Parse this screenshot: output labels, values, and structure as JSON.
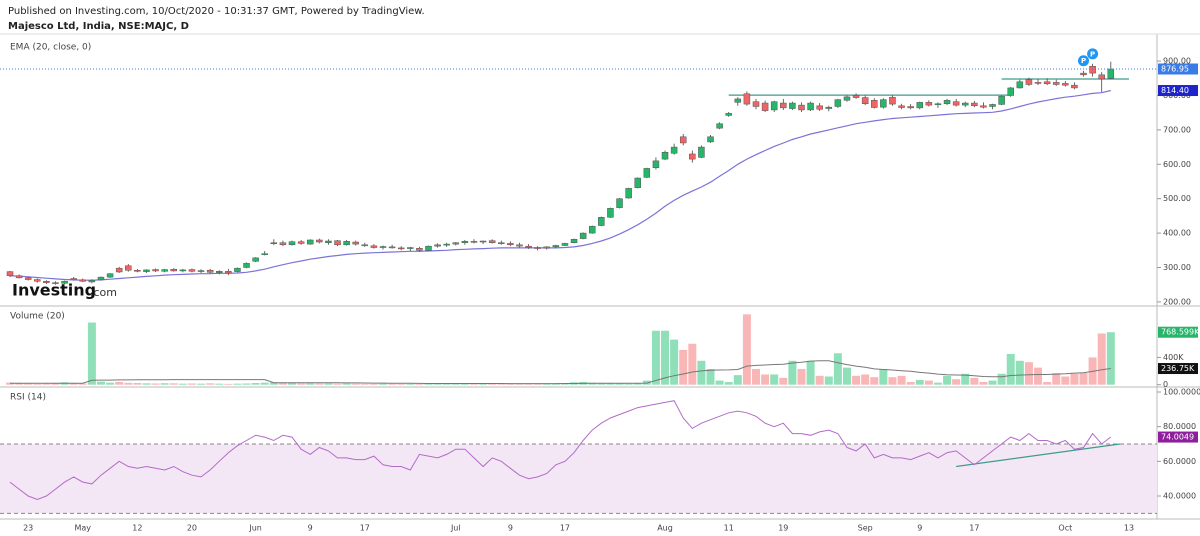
{
  "header": {
    "published": "Published on Investing.com, 10/Oct/2020 - 10:31:37 GMT, Powered by TradingView.",
    "symbol": "Majesco Ltd, India, NSE:MAJC, D"
  },
  "watermark": {
    "brand": "Investing",
    "suffix": ".com"
  },
  "chart_data": [
    {
      "type": "candlestick",
      "title": "EMA (20, close, 0)",
      "categories": [
        null,
        null,
        "23",
        null,
        null,
        null,
        null,
        null,
        "May",
        null,
        null,
        null,
        null,
        null,
        "12",
        null,
        null,
        null,
        null,
        null,
        "20",
        null,
        null,
        null,
        null,
        null,
        null,
        "Jun",
        null,
        null,
        null,
        null,
        null,
        "9",
        null,
        null,
        null,
        null,
        null,
        "17",
        null,
        null,
        null,
        null,
        null,
        null,
        null,
        null,
        null,
        "Jul",
        null,
        null,
        null,
        null,
        null,
        "9",
        null,
        null,
        null,
        null,
        null,
        "17",
        null,
        null,
        null,
        null,
        null,
        null,
        null,
        null,
        null,
        null,
        "Aug",
        null,
        null,
        null,
        null,
        null,
        null,
        "11",
        null,
        null,
        null,
        null,
        null,
        "19",
        null,
        null,
        null,
        null,
        null,
        null,
        null,
        null,
        "Sep",
        null,
        null,
        null,
        null,
        null,
        "9",
        null,
        null,
        null,
        null,
        null,
        "17",
        null,
        null,
        null,
        null,
        null,
        null,
        null,
        null,
        null,
        "Oct",
        null,
        null,
        null,
        null,
        null,
        null,
        "13"
      ],
      "open": [
        288,
        276,
        270,
        265,
        260,
        256,
        254,
        268,
        264,
        258,
        264,
        272,
        298,
        305,
        292,
        288,
        294,
        289,
        295,
        290,
        294,
        290,
        292,
        285,
        289,
        288,
        300,
        318,
        340,
        370,
        372,
        366,
        375,
        368,
        380,
        372,
        378,
        366,
        374,
        366,
        363,
        358,
        360,
        357,
        355,
        356,
        350,
        362,
        366,
        368,
        372,
        376,
        374,
        378,
        372,
        370,
        366,
        362,
        358,
        356,
        360,
        364,
        372,
        384,
        400,
        422,
        446,
        474,
        502,
        532,
        562,
        590,
        615,
        632,
        680,
        630,
        620,
        665,
        705,
        742,
        780,
        805,
        782,
        778,
        758,
        778,
        762,
        772,
        758,
        770,
        762,
        768,
        786,
        800,
        794,
        786,
        766,
        795,
        770,
        768,
        764,
        780,
        774,
        776,
        782,
        772,
        778,
        770,
        768,
        774,
        800,
        822,
        846,
        838,
        840,
        838,
        835,
        830,
        865,
        885,
        860,
        850,
        null,
        null
      ],
      "high": [
        290,
        280,
        273,
        268,
        263,
        260,
        262,
        272,
        268,
        266,
        274,
        284,
        302,
        310,
        296,
        295,
        297,
        296,
        298,
        296,
        297,
        295,
        296,
        292,
        296,
        300,
        315,
        330,
        348,
        382,
        378,
        378,
        380,
        382,
        384,
        382,
        380,
        380,
        378,
        372,
        368,
        364,
        366,
        362,
        360,
        360,
        364,
        370,
        372,
        374,
        380,
        382,
        378,
        382,
        378,
        376,
        372,
        368,
        362,
        362,
        366,
        372,
        384,
        402,
        422,
        448,
        474,
        502,
        532,
        562,
        590,
        620,
        640,
        660,
        688,
        640,
        655,
        685,
        722,
        752,
        795,
        812,
        790,
        785,
        785,
        790,
        782,
        780,
        782,
        778,
        770,
        790,
        800,
        806,
        800,
        792,
        792,
        800,
        776,
        775,
        782,
        786,
        780,
        790,
        790,
        782,
        784,
        780,
        776,
        800,
        825,
        846,
        852,
        848,
        850,
        846,
        842,
        838,
        872,
        892,
        868,
        898,
        null,
        null
      ],
      "low": [
        272,
        268,
        262,
        256,
        252,
        250,
        252,
        262,
        258,
        254,
        262,
        270,
        284,
        288,
        286,
        284,
        287,
        286,
        288,
        286,
        286,
        284,
        283,
        280,
        278,
        286,
        298,
        316,
        335,
        365,
        362,
        364,
        366,
        366,
        370,
        366,
        362,
        364,
        364,
        360,
        355,
        352,
        355,
        350,
        348,
        346,
        348,
        358,
        360,
        364,
        366,
        370,
        368,
        370,
        366,
        362,
        358,
        354,
        350,
        352,
        356,
        362,
        370,
        382,
        398,
        420,
        444,
        472,
        500,
        530,
        560,
        585,
        612,
        628,
        655,
        605,
        618,
        662,
        702,
        738,
        770,
        770,
        760,
        752,
        752,
        758,
        758,
        752,
        755,
        755,
        754,
        764,
        782,
        790,
        772,
        762,
        762,
        770,
        760,
        760,
        760,
        768,
        764,
        772,
        768,
        766,
        766,
        762,
        760,
        772,
        796,
        820,
        828,
        830,
        830,
        828,
        826,
        818,
        855,
        855,
        810,
        848,
        null,
        null
      ],
      "close": [
        276,
        270,
        265,
        260,
        256,
        254,
        260,
        264,
        260,
        263,
        272,
        282,
        287,
        292,
        289,
        293,
        290,
        294,
        290,
        293,
        289,
        291,
        286,
        289,
        284,
        298,
        312,
        328,
        340,
        372,
        366,
        375,
        370,
        380,
        374,
        377,
        366,
        376,
        368,
        363,
        358,
        361,
        357,
        355,
        358,
        350,
        362,
        366,
        368,
        372,
        376,
        374,
        377,
        372,
        370,
        366,
        362,
        358,
        355,
        360,
        364,
        370,
        382,
        400,
        420,
        446,
        472,
        500,
        530,
        560,
        588,
        610,
        635,
        650,
        662,
        615,
        650,
        680,
        718,
        748,
        790,
        775,
        768,
        756,
        782,
        764,
        778,
        758,
        778,
        760,
        766,
        788,
        796,
        794,
        776,
        765,
        788,
        775,
        765,
        764,
        780,
        772,
        776,
        786,
        772,
        778,
        770,
        766,
        774,
        798,
        822,
        840,
        832,
        836,
        834,
        832,
        830,
        822,
        860,
        865,
        848,
        876.95,
        null,
        null
      ],
      "up_color": "#27b56a",
      "down_color": "#ef6464",
      "last_color": "#3a7be6",
      "ylim": [
        191,
        970
      ],
      "yticks": [
        {
          "value": 200,
          "label": "200.00"
        },
        {
          "value": 300,
          "label": "300.00"
        },
        {
          "value": 400,
          "label": "400.00"
        },
        {
          "value": 500,
          "label": "500.00"
        },
        {
          "value": 600,
          "label": "600.00"
        },
        {
          "value": 700,
          "label": "700.00"
        },
        {
          "value": 800,
          "label": "800.00"
        },
        {
          "value": 900,
          "label": "900.00"
        }
      ],
      "ema": {
        "color": "#7b74d8",
        "label_color": "#1f24c9",
        "last_label": "814.40",
        "values": [
          276,
          275,
          273,
          271,
          269,
          267,
          265,
          264,
          263,
          263,
          264,
          266,
          268,
          270,
          272,
          274,
          276,
          278,
          279,
          280,
          281,
          282,
          282,
          283,
          283,
          284,
          286,
          290,
          295,
          302,
          308,
          314,
          319,
          324,
          328,
          332,
          335,
          338,
          340,
          342,
          343,
          344,
          345,
          346,
          347,
          347,
          348,
          349,
          350,
          352,
          353,
          354,
          355,
          356,
          357,
          357,
          357,
          357,
          357,
          357,
          357,
          358,
          360,
          364,
          370,
          377,
          386,
          397,
          410,
          424,
          440,
          458,
          478,
          495,
          510,
          522,
          534,
          548,
          565,
          582,
          600,
          615,
          628,
          640,
          652,
          662,
          672,
          680,
          688,
          694,
          700,
          706,
          712,
          718,
          722,
          726,
          730,
          733,
          735,
          737,
          739,
          741,
          743,
          745,
          747,
          748,
          749,
          750,
          751,
          755,
          761,
          768,
          775,
          781,
          786,
          791,
          795,
          798,
          802,
          806,
          808,
          814.4,
          null,
          null
        ]
      },
      "trendlines": [
        {
          "x": [
            79,
            110
          ],
          "y": [
            801,
            801
          ]
        },
        {
          "x": [
            109,
            123
          ],
          "y": [
            848,
            848
          ]
        }
      ],
      "trendline_color": "#3f9a8c",
      "markers": [
        {
          "label": "P",
          "index": 118
        },
        {
          "label": "P",
          "index": 119
        }
      ],
      "marker_color": "#2196f3"
    },
    {
      "type": "volume",
      "title": "Volume (20)",
      "values": [
        30,
        20,
        15,
        12,
        15,
        18,
        35,
        22,
        18,
        910,
        45,
        30,
        40,
        28,
        25,
        20,
        18,
        22,
        20,
        15,
        18,
        15,
        20,
        15,
        12,
        15,
        18,
        25,
        30,
        35,
        28,
        25,
        20,
        22,
        18,
        20,
        15,
        18,
        15,
        12,
        12,
        15,
        12,
        10,
        12,
        10,
        15,
        18,
        22,
        20,
        15,
        18,
        15,
        12,
        10,
        12,
        15,
        12,
        10,
        12,
        15,
        20,
        35,
        40,
        30,
        25,
        20,
        18,
        15,
        25,
        60,
        790,
        790,
        660,
        510,
        600,
        350,
        230,
        60,
        40,
        140,
        1030,
        230,
        150,
        150,
        100,
        350,
        230,
        350,
        130,
        120,
        460,
        250,
        130,
        150,
        110,
        230,
        110,
        130,
        40,
        70,
        60,
        30,
        130,
        80,
        160,
        100,
        40,
        60,
        160,
        450,
        350,
        330,
        250,
        40,
        170,
        120,
        160,
        170,
        400,
        750,
        768.599,
        null,
        null
      ],
      "last_label": "768.599K",
      "label_color": "#27b56a",
      "up_color": "#8fe0b8",
      "down_color": "#f9b6b6",
      "ylim": [
        -19,
        1123
      ],
      "yticks": [
        0,
        {
          "value": 400,
          "label": "400K"
        }
      ],
      "ma": {
        "color": "#777777",
        "label_color": "#111111",
        "last_label": "236.75K",
        "values": [
          20,
          20,
          20,
          20,
          20,
          20,
          22,
          22,
          22,
          65,
          67,
          68,
          70,
          71,
          72,
          72,
          73,
          73,
          74,
          74,
          74,
          74,
          74,
          74,
          74,
          74,
          74,
          74,
          75,
          30,
          30,
          30,
          29,
          29,
          28,
          28,
          28,
          27,
          26,
          25,
          24,
          23,
          22,
          21,
          20,
          19,
          18,
          18,
          18,
          18,
          18,
          18,
          18,
          17,
          17,
          16,
          16,
          16,
          16,
          16,
          16,
          17,
          18,
          19,
          20,
          20,
          20,
          20,
          20,
          21,
          24,
          62,
          100,
          132,
          157,
          186,
          202,
          213,
          215,
          216,
          222,
          272,
          282,
          289,
          296,
          300,
          318,
          330,
          345,
          350,
          350,
          322,
          295,
          272,
          255,
          232,
          222,
          215,
          205,
          198,
          180,
          170,
          155,
          145,
          142,
          140,
          130,
          120,
          115,
          115,
          135,
          140,
          145,
          150,
          150,
          155,
          160,
          170,
          175,
          195,
          220,
          236.75,
          null,
          null
        ]
      }
    },
    {
      "type": "rsi",
      "title": "RSI (14)",
      "values": [
        48,
        44,
        40,
        38,
        40,
        44,
        48,
        51,
        48,
        47,
        52,
        56,
        60,
        57,
        56,
        57,
        56,
        55,
        57,
        54,
        52,
        51,
        55,
        60,
        65,
        69,
        72,
        75,
        74,
        72,
        75,
        74,
        67,
        64,
        68,
        66,
        62,
        62,
        61,
        61,
        63,
        58,
        57,
        57,
        55,
        64,
        63,
        62,
        64,
        67,
        67,
        62,
        57,
        62,
        60,
        56,
        52,
        50,
        51,
        53,
        58,
        60,
        65,
        72,
        78,
        82,
        85,
        87,
        89,
        91,
        92,
        93,
        94,
        95,
        85,
        79,
        82,
        84,
        86,
        88,
        89,
        88,
        86,
        82,
        80,
        82,
        76,
        76,
        75,
        77,
        78,
        76,
        68,
        66,
        70,
        62,
        64,
        62,
        62,
        61,
        63,
        65,
        62,
        65,
        66,
        62,
        58,
        62,
        66,
        70,
        74,
        72,
        76,
        72,
        72,
        70,
        72,
        67,
        68,
        76,
        70,
        74.0049,
        null,
        null
      ],
      "color": "#b46ac8",
      "label_color": "#8e1f9c",
      "band": [
        30,
        70
      ],
      "band_color": "#f3e7f5",
      "ylim": [
        27.3,
        102.3
      ],
      "yticks": [
        {
          "value": 40,
          "label": "40.0000"
        },
        {
          "value": 60,
          "label": "60.0000"
        },
        {
          "value": 80,
          "label": "80.0000"
        },
        {
          "value": 100,
          "label": "100.0000"
        }
      ],
      "trendlines": [
        {
          "x": [
            104,
            122
          ],
          "y": [
            57,
            70
          ]
        }
      ],
      "trendline_color": "#3f9a8c"
    }
  ]
}
